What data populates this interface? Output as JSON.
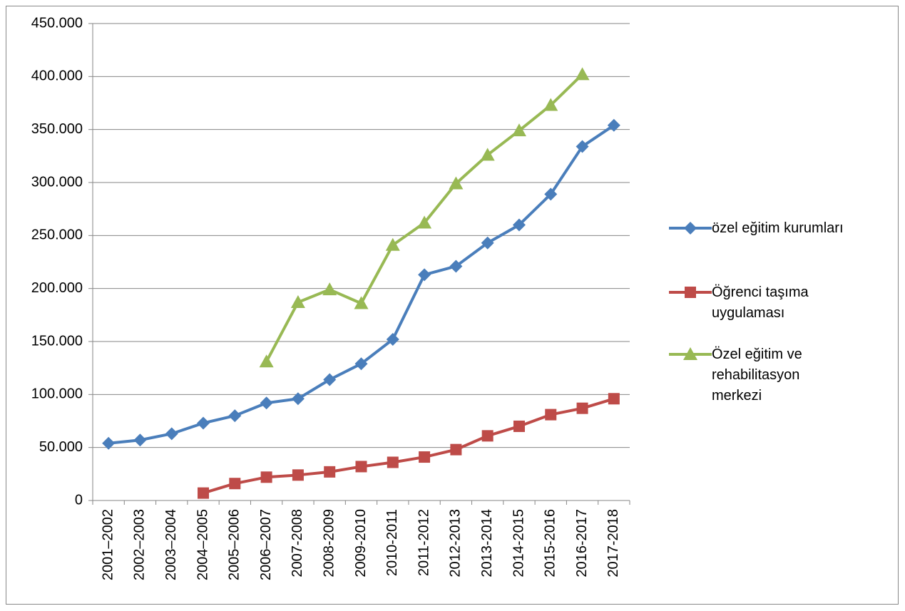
{
  "chart_data": {
    "type": "line",
    "categories": [
      "2001–2002",
      "2002–2003",
      "2003–2004",
      "2004–2005",
      "2005–2006",
      "2006–2007",
      "2007-2008",
      "2008-2009",
      "2009-2010",
      "2010-2011",
      "2011-2012",
      "2012-2013",
      "2013-2014",
      "2014-2015",
      "2015-2016",
      "2016-2017",
      "2017-2018"
    ],
    "series": [
      {
        "name": "özel eğitim kurumları",
        "color": "#4a7ebb",
        "marker": "diamond",
        "values": [
          54000,
          57000,
          63000,
          73000,
          80000,
          92000,
          96000,
          114000,
          129000,
          152000,
          213000,
          221000,
          243000,
          260000,
          289000,
          334000,
          354000
        ]
      },
      {
        "name": "Öğrenci taşıma uygulaması",
        "color": "#be4b48",
        "marker": "square",
        "values": [
          null,
          null,
          null,
          7000,
          16000,
          22000,
          24000,
          27000,
          32000,
          36000,
          41000,
          48000,
          61000,
          70000,
          81000,
          87000,
          96000
        ]
      },
      {
        "name": "Özel eğitim ve rehabilitasyon merkezi",
        "color": "#98b954",
        "marker": "triangle",
        "values": [
          null,
          null,
          null,
          null,
          null,
          131000,
          187000,
          199000,
          186000,
          241000,
          262000,
          299000,
          326000,
          349000,
          373000,
          402000,
          null
        ]
      }
    ],
    "ylim": [
      0,
      450000
    ],
    "yticks": [
      0,
      {
        "value": 50000,
        "label": "50.000"
      },
      {
        "value": 100000,
        "label": "100.000"
      },
      {
        "value": 150000,
        "label": "150.000"
      },
      {
        "value": 200000,
        "label": "200.000"
      },
      {
        "value": 250000,
        "label": "250.000"
      },
      {
        "value": 300000,
        "label": "300.000"
      },
      {
        "value": 350000,
        "label": "350.000"
      },
      {
        "value": 400000,
        "label": "400.000"
      },
      {
        "value": 450000,
        "label": "450.000"
      }
    ],
    "grid": true,
    "legend": "right"
  }
}
